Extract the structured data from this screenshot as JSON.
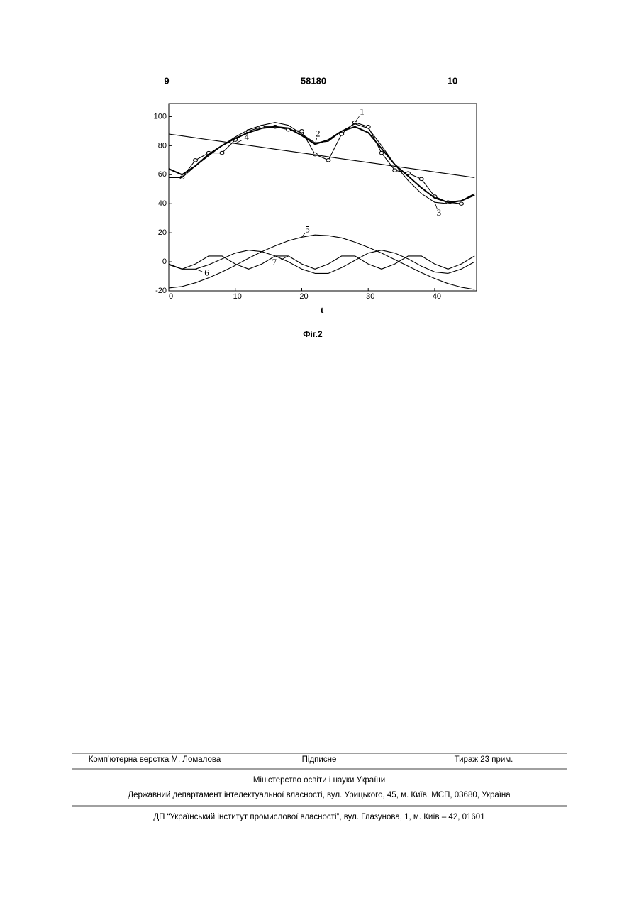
{
  "header": {
    "left": "9",
    "center": "58180",
    "right": "10"
  },
  "chart_data": {
    "type": "line",
    "x_label": "t",
    "x": [
      0,
      2,
      4,
      6,
      8,
      10,
      12,
      14,
      16,
      18,
      20,
      22,
      24,
      26,
      28,
      30,
      32,
      34,
      36,
      38,
      40,
      42,
      44,
      46
    ],
    "xlim": [
      0,
      46.3
    ],
    "ylim": [
      -20,
      109
    ],
    "xticks": [
      0,
      10,
      20,
      30,
      40
    ],
    "yticks": [
      -20,
      0,
      20,
      40,
      60,
      80,
      100
    ],
    "series": [
      {
        "name": "1",
        "color": "#000000",
        "marker": "circle",
        "values": [
          null,
          58,
          70,
          75,
          75,
          84,
          90,
          93,
          93,
          91,
          90,
          74,
          70,
          88,
          96,
          93,
          75,
          63,
          61,
          57,
          45,
          41,
          40,
          null
        ]
      },
      {
        "name": "2",
        "color": "#000000",
        "values": [
          64,
          60,
          66,
          74,
          80,
          85,
          89,
          92,
          93,
          92,
          87,
          81,
          84,
          90,
          93,
          89,
          78,
          67,
          59,
          51,
          44,
          41,
          42,
          46
        ]
      },
      {
        "name": "3",
        "color": "#000000",
        "values": [
          58,
          58,
          66,
          73,
          80,
          86,
          91,
          94,
          96,
          94,
          88,
          82,
          83,
          90,
          95,
          92,
          80,
          67,
          56,
          47,
          41,
          40,
          42,
          47
        ]
      },
      {
        "name": "4",
        "color": "#000000",
        "values": [
          88,
          86.7,
          85.4,
          84.1,
          82.8,
          81.5,
          80.2,
          78.9,
          77.6,
          76.3,
          75,
          73.7,
          72.3,
          71,
          69.7,
          68.4,
          67.1,
          65.8,
          64.5,
          63.2,
          61.9,
          60.6,
          59.3,
          58
        ]
      },
      {
        "name": "5",
        "color": "#000000",
        "values": [
          -18,
          -17,
          -14.5,
          -11,
          -7,
          -2.5,
          2.5,
          7,
          11,
          14.5,
          17,
          18.5,
          18,
          16.5,
          13.5,
          10,
          6,
          1.5,
          -3,
          -7.5,
          -11.5,
          -15,
          -17.5,
          -19
        ]
      },
      {
        "name": "6",
        "color": "#000000",
        "values": [
          -2,
          -5,
          -5,
          -2,
          2,
          6,
          8,
          7,
          4,
          0,
          -5,
          -8,
          -8,
          -4,
          1,
          6,
          8,
          6,
          2,
          -3,
          -7,
          -8,
          -5,
          0
        ]
      },
      {
        "name": "7",
        "color": "#000000",
        "values": [
          -1.5,
          -5,
          -1.5,
          4,
          4,
          -1.5,
          -5,
          -1.5,
          4,
          4,
          -1.5,
          -5,
          -1.5,
          4,
          4,
          -1.5,
          -5,
          -1.5,
          4,
          4,
          -1.5,
          -5,
          -1.5,
          4
        ]
      }
    ]
  },
  "caption": "Фіг.2",
  "footer": {
    "row1": [
      "Комп’ютерна верстка М. Ломалова",
      "Підписне",
      "Тираж 23 прим."
    ],
    "ministry": "Міністерство освіти і науки України",
    "department": "Державний департамент інтелектуальної власності, вул. Урицького, 45, м. Київ, МСП, 03680, Україна",
    "publisher": "ДП “Український інститут промислової власності”, вул. Глазунова, 1, м. Київ – 42, 01601"
  }
}
